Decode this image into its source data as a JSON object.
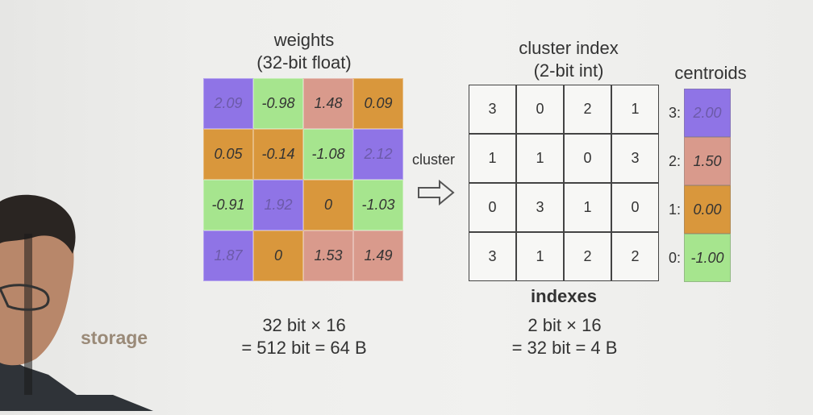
{
  "colors": {
    "purple": "#8f74e6",
    "green": "#a6e58e",
    "salmon": "#d99a8c",
    "orange": "#d9973c"
  },
  "weights": {
    "title_line1": "weights",
    "title_line2": "(32-bit float)",
    "rows": [
      [
        {
          "v": "2.09",
          "c": "purple"
        },
        {
          "v": "-0.98",
          "c": "green"
        },
        {
          "v": "1.48",
          "c": "salmon"
        },
        {
          "v": "0.09",
          "c": "orange"
        }
      ],
      [
        {
          "v": "0.05",
          "c": "orange"
        },
        {
          "v": "-0.14",
          "c": "orange"
        },
        {
          "v": "-1.08",
          "c": "green"
        },
        {
          "v": "2.12",
          "c": "purple"
        }
      ],
      [
        {
          "v": "-0.91",
          "c": "green"
        },
        {
          "v": "1.92",
          "c": "purple"
        },
        {
          "v": "0",
          "c": "orange"
        },
        {
          "v": "-1.03",
          "c": "green"
        }
      ],
      [
        {
          "v": "1.87",
          "c": "purple"
        },
        {
          "v": "0",
          "c": "orange"
        },
        {
          "v": "1.53",
          "c": "salmon"
        },
        {
          "v": "1.49",
          "c": "salmon"
        }
      ]
    ]
  },
  "arrow_label": "cluster",
  "cluster_index": {
    "title_line1": "cluster index",
    "title_line2": "(2-bit int)",
    "rows": [
      [
        "3",
        "0",
        "2",
        "1"
      ],
      [
        "1",
        "1",
        "0",
        "3"
      ],
      [
        "0",
        "3",
        "1",
        "0"
      ],
      [
        "3",
        "1",
        "2",
        "2"
      ]
    ],
    "caption": "indexes"
  },
  "centroids": {
    "title": "centroids",
    "items": [
      {
        "label": "3:",
        "v": "2.00",
        "c": "purple"
      },
      {
        "label": "2:",
        "v": "1.50",
        "c": "salmon"
      },
      {
        "label": "1:",
        "v": "0.00",
        "c": "orange"
      },
      {
        "label": "0:",
        "v": "-1.00",
        "c": "green"
      }
    ]
  },
  "storage": {
    "label": "storage",
    "weights_line1": "32 bit × 16",
    "weights_line2": "= 512 bit = 64 B",
    "index_line1": "2 bit × 16",
    "index_line2": "= 32 bit = 4 B"
  }
}
